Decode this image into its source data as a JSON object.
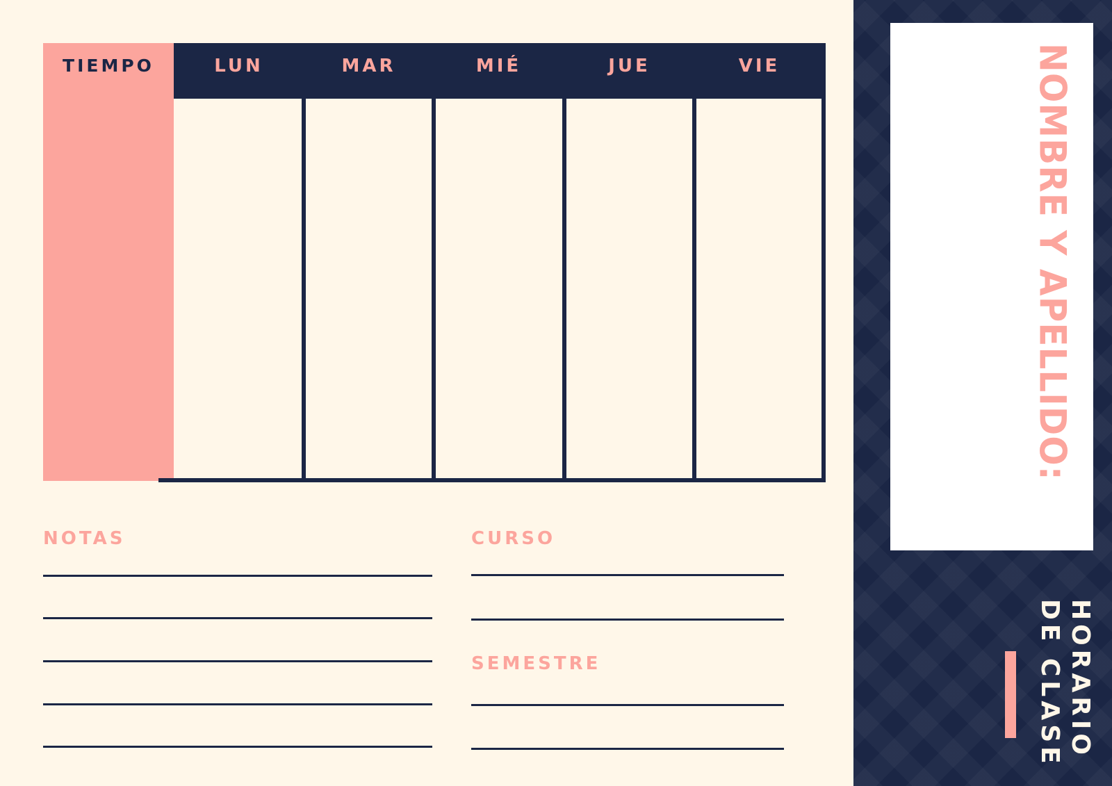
{
  "schedule": {
    "time_header": "TIEMPO",
    "days": [
      "LUN",
      "MAR",
      "MIÉ",
      "JUE",
      "VIE"
    ]
  },
  "notes": {
    "label": "NOTAS"
  },
  "course": {
    "label": "CURSO"
  },
  "semester": {
    "label": "SEMESTRE"
  },
  "sidebar": {
    "name_label": "NOMBRE Y APELLIDO:",
    "title_line1": "HORARIO",
    "title_line2": "DE CLASE"
  },
  "colors": {
    "navy": "#1b2645",
    "pink": "#fca59d",
    "cream": "#fff7e9"
  }
}
